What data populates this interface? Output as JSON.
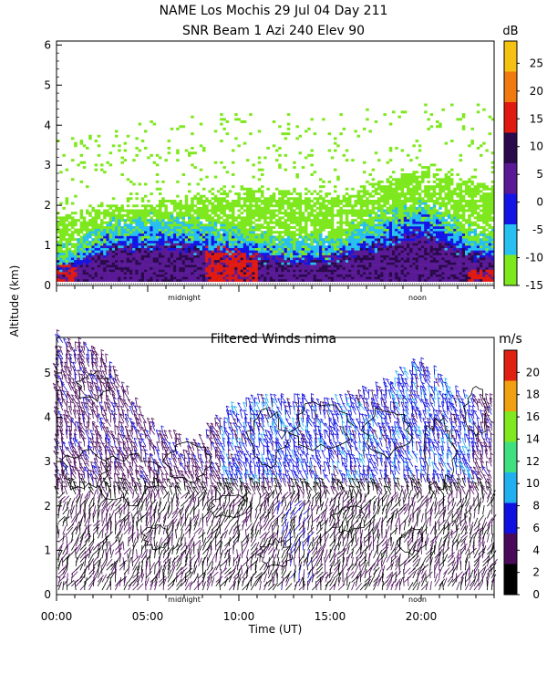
{
  "header": {
    "title_line1": "NAME Los Mochis   29 Jul 04 Day 211",
    "title_line2": "SNR Beam 1 Azi 240 Elev 90"
  },
  "shared_ylabel": "Altitude (km)",
  "chart_data": [
    {
      "id": "snr",
      "type": "heatmap",
      "title": "SNR Beam 1 Azi 240 Elev 90",
      "ylabel": "Altitude (km)",
      "xlim": [
        0,
        24
      ],
      "ylim": [
        0,
        6.1
      ],
      "y_ticks": [
        0,
        1,
        2,
        3,
        4,
        5,
        6
      ],
      "x_markers": [
        {
          "label": "midnight",
          "x": 7.0
        },
        {
          "label": "noon",
          "x": 19.8
        }
      ],
      "colorbar": {
        "unit": "dB",
        "range": [
          -15,
          29
        ],
        "ticks": [
          -15,
          -10,
          -5,
          0,
          5,
          10,
          15,
          20,
          25
        ],
        "colors": [
          "#7ee81e",
          "#27c0f0",
          "#1414e6",
          "#5a1a96",
          "#2a0a4a",
          "#e01a10",
          "#f07a10",
          "#f5c214"
        ]
      },
      "profile_summary": [
        {
          "x": 0.5,
          "strong_top": 0.6,
          "cloud_top": 1.7
        },
        {
          "x": 3.0,
          "strong_top": 1.2,
          "cloud_top": 2.0
        },
        {
          "x": 6.0,
          "strong_top": 1.3,
          "cloud_top": 2.1
        },
        {
          "x": 9.0,
          "strong_top": 1.1,
          "cloud_top": 2.3
        },
        {
          "x": 12.0,
          "strong_top": 0.8,
          "cloud_top": 2.3
        },
        {
          "x": 15.0,
          "strong_top": 0.8,
          "cloud_top": 2.2
        },
        {
          "x": 18.0,
          "strong_top": 1.4,
          "cloud_top": 2.6
        },
        {
          "x": 20.0,
          "strong_top": 1.7,
          "cloud_top": 2.9
        },
        {
          "x": 23.0,
          "strong_top": 0.9,
          "cloud_top": 2.5
        }
      ]
    },
    {
      "id": "winds",
      "type": "barbs",
      "title": "Filtered Winds nima",
      "xlabel": "Time (UT)",
      "ylabel": "Altitude (km)",
      "xlim": [
        0,
        24
      ],
      "ylim": [
        0,
        5.8
      ],
      "x_ticks": [
        "00:00",
        "05:00",
        "10:00",
        "15:00",
        "20:00"
      ],
      "y_ticks": [
        0,
        1,
        2,
        3,
        4,
        5
      ],
      "x_markers": [
        {
          "label": "midnight",
          "x": 7.0
        },
        {
          "label": "noon",
          "x": 19.8
        }
      ],
      "colorbar": {
        "unit": "m/s",
        "range": [
          0,
          22
        ],
        "ticks": [
          0,
          2,
          4,
          6,
          8,
          10,
          12,
          14,
          16,
          18,
          20
        ],
        "colors": [
          "#000000",
          "#4a0a5a",
          "#1010e0",
          "#20b0f0",
          "#40e080",
          "#80e820",
          "#f0a010",
          "#e02010"
        ]
      },
      "coverage_top_km": [
        {
          "x": 0.0,
          "top": 5.8
        },
        {
          "x": 2.5,
          "top": 5.4
        },
        {
          "x": 5.0,
          "top": 3.9
        },
        {
          "x": 7.5,
          "top": 3.3
        },
        {
          "x": 10.0,
          "top": 4.3
        },
        {
          "x": 12.5,
          "top": 4.4
        },
        {
          "x": 15.0,
          "top": 4.3
        },
        {
          "x": 17.5,
          "top": 4.6
        },
        {
          "x": 20.0,
          "top": 5.2
        },
        {
          "x": 22.5,
          "top": 4.4
        }
      ]
    }
  ]
}
